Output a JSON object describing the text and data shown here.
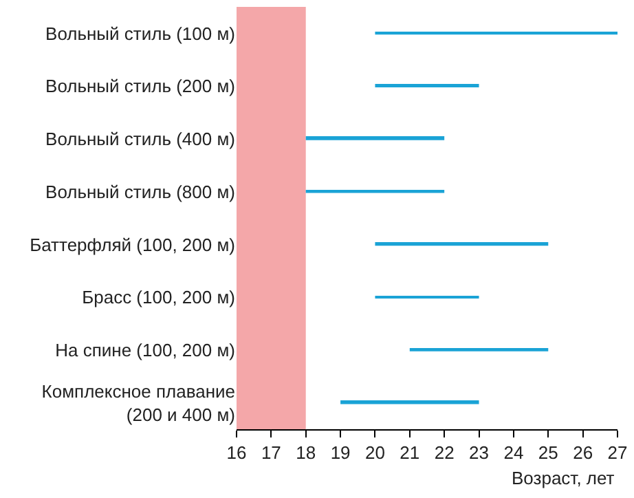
{
  "chart_data": {
    "type": "bar",
    "orientation": "horizontal",
    "xlabel": "Возраст, лет",
    "categories": [
      "Вольный стиль (100 м)",
      "Вольный стиль (200 м)",
      "Вольный стиль (400 м)",
      "Вольный стиль (800 м)",
      "Баттерфляй (100, 200 м)",
      "Брасс (100, 200 м)",
      "На спине (100, 200 м)",
      "Комплексное плавание (200 и 400 м)"
    ],
    "base": [
      20,
      20,
      18,
      18,
      20,
      20,
      21,
      19
    ],
    "values": [
      7,
      3,
      4,
      4,
      5,
      3,
      4,
      4
    ],
    "color": "#1aa3d6",
    "xlim": [
      16,
      27
    ],
    "xticks": [
      16,
      17,
      18,
      19,
      20,
      21,
      22,
      23,
      24,
      25,
      26,
      27
    ],
    "bands": [
      {
        "axis": "x",
        "from": 16,
        "to": 18,
        "color": "#f4a7a9"
      }
    ],
    "grid": false
  }
}
